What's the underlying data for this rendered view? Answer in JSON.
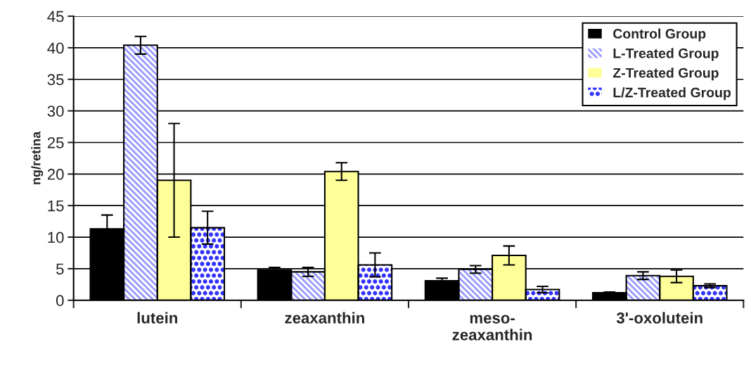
{
  "chart_data": {
    "type": "bar",
    "ylabel": "ng/retina",
    "categories": [
      "lutein",
      "zeaxanthin",
      "meso-\nzeaxanthin",
      "3'-oxolutein"
    ],
    "series": [
      {
        "name": "Control Group",
        "color": "#000000",
        "values": [
          11.3,
          4.8,
          3.1,
          1.2
        ],
        "errors": [
          2.2,
          0.4,
          0.4,
          0.1
        ]
      },
      {
        "name": "L-Treated Group",
        "color": "#9999ff",
        "values": [
          40.4,
          4.5,
          4.9,
          3.9
        ],
        "errors": [
          1.4,
          0.7,
          0.6,
          0.6
        ]
      },
      {
        "name": "Z-Treated Group",
        "color": "#ffff99",
        "values": [
          19.0,
          20.4,
          7.1,
          3.8
        ],
        "errors": [
          9.0,
          1.4,
          1.5,
          1.0
        ]
      },
      {
        "name": "L/Z-Treated Group",
        "color": "#3333ff",
        "values": [
          11.5,
          5.6,
          1.7,
          2.3
        ],
        "errors": [
          2.6,
          1.9,
          0.5,
          0.3
        ]
      }
    ],
    "ylim": [
      0,
      45
    ],
    "yticks": [
      0,
      5,
      10,
      15,
      20,
      25,
      30,
      35,
      40,
      45
    ],
    "grid": "y",
    "legend": "top right"
  }
}
